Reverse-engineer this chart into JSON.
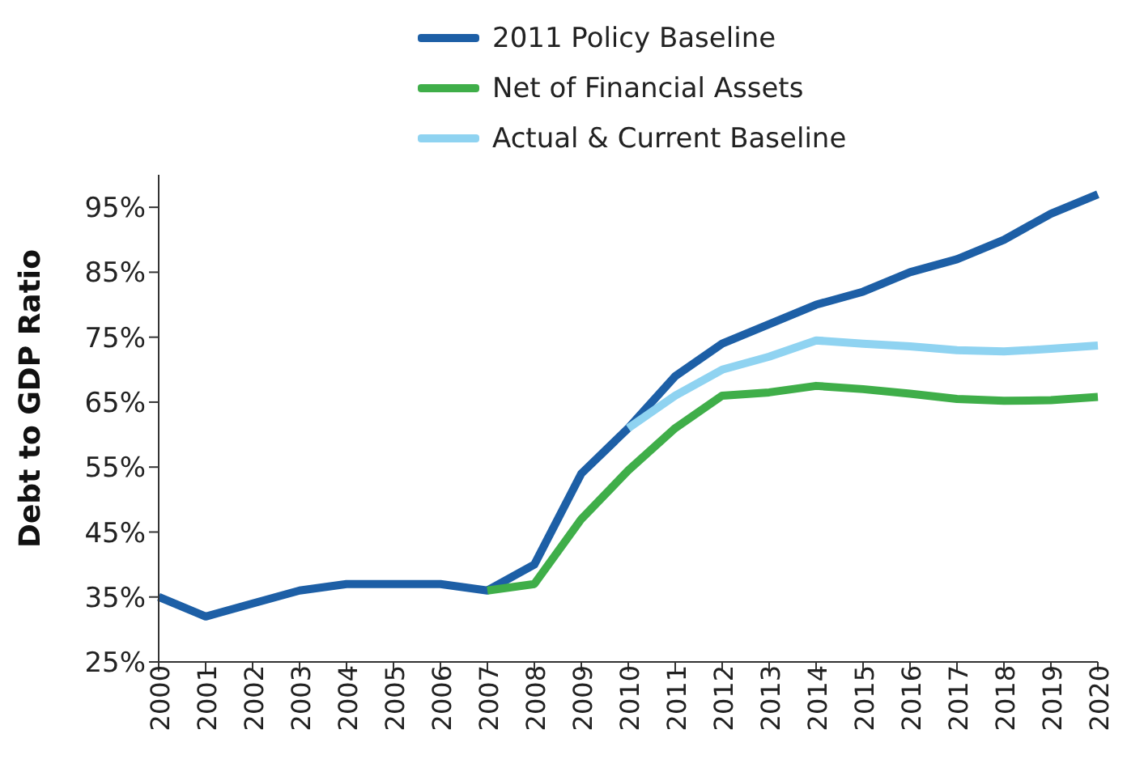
{
  "chart_data": {
    "type": "line",
    "ylabel": "Debt to GDP Ratio",
    "categories": [
      "2000",
      "2001",
      "2002",
      "2003",
      "2004",
      "2005",
      "2006",
      "2007",
      "2008",
      "2009",
      "2010",
      "2011",
      "2012",
      "2013",
      "2014",
      "2015",
      "2016",
      "2017",
      "2018",
      "2019",
      "2020"
    ],
    "series": [
      {
        "name": "2011 Policy Baseline",
        "color": "#1d5fa6",
        "values": [
          35,
          32,
          34,
          36,
          37,
          37,
          37,
          36,
          40,
          54,
          61,
          69,
          74,
          77,
          80,
          82,
          85,
          87,
          90,
          94,
          97
        ]
      },
      {
        "name": "Net of Financial Assets",
        "color": "#3fae49",
        "values": [
          null,
          null,
          null,
          null,
          null,
          null,
          null,
          36,
          37,
          47,
          54.5,
          61,
          66,
          66.5,
          67.5,
          67,
          66.3,
          65.5,
          65.2,
          65.3,
          65.8
        ]
      },
      {
        "name": "Actual & Current Baseline",
        "color": "#8fd3f1",
        "values": [
          null,
          null,
          null,
          null,
          null,
          null,
          null,
          null,
          null,
          null,
          61,
          66,
          70,
          72,
          74.5,
          74,
          73.6,
          73,
          72.8,
          73.2,
          73.7
        ]
      }
    ],
    "ylim": [
      25,
      100
    ],
    "yticks": [
      {
        "value": 25,
        "label": "25%"
      },
      {
        "value": 35,
        "label": "35%"
      },
      {
        "value": 45,
        "label": "45%"
      },
      {
        "value": 55,
        "label": "55%"
      },
      {
        "value": 65,
        "label": "65%"
      },
      {
        "value": 75,
        "label": "75%"
      },
      {
        "value": 85,
        "label": "85%"
      },
      {
        "value": 95,
        "label": "95%"
      }
    ],
    "grid": false,
    "legend": "top",
    "marker": "none",
    "line_style": "solid"
  }
}
